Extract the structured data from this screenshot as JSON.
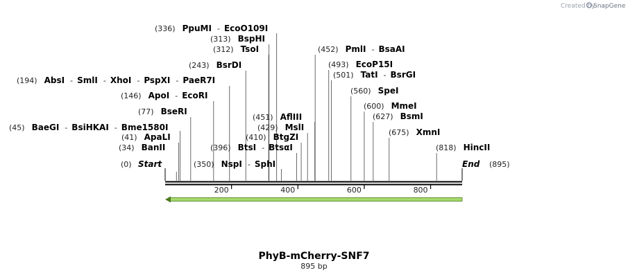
{
  "credit": {
    "prefix": "Created by",
    "brand": "SnapGene"
  },
  "map": {
    "name": "PhyB-mCherry-SNF7",
    "length_label": "895 bp",
    "length": 895,
    "start_label": "Start",
    "end_label": "End",
    "start_pos": "(0)",
    "end_pos": "(895)",
    "ticks": [
      {
        "value": 200,
        "label": "200"
      },
      {
        "value": 400,
        "label": "400"
      },
      {
        "value": 600,
        "label": "600"
      },
      {
        "value": 800,
        "label": "800"
      }
    ],
    "feature": {
      "start": 0,
      "end": 895,
      "direction": "reverse",
      "color": "#a6d96a"
    }
  },
  "sites": [
    {
      "pos": "(34)",
      "names": [
        "BanII"
      ],
      "cuts": [
        34
      ]
    },
    {
      "pos": "(41)",
      "names": [
        "ApaLI"
      ],
      "cuts": [
        41
      ]
    },
    {
      "pos": "(45)",
      "names": [
        "BaeGI",
        "BsiHKAI",
        "Bme1580I"
      ],
      "cuts": [
        45
      ]
    },
    {
      "pos": "(77)",
      "names": [
        "BseRI"
      ],
      "cuts": [
        77
      ]
    },
    {
      "pos": "(146)",
      "names": [
        "ApoI",
        "EcoRI"
      ],
      "cuts": [
        146
      ]
    },
    {
      "pos": "(194)",
      "names": [
        "AbsI",
        "SmlI",
        "XhoI",
        "PspXI",
        "PaeR7I"
      ],
      "cuts": [
        194
      ]
    },
    {
      "pos": "(243)",
      "names": [
        "BsrDI"
      ],
      "cuts": [
        243
      ]
    },
    {
      "pos": "(312)",
      "names": [
        "TsoI"
      ],
      "cuts": [
        312
      ]
    },
    {
      "pos": "(313)",
      "names": [
        "BspHI"
      ],
      "cuts": [
        313
      ]
    },
    {
      "pos": "(336)",
      "names": [
        "PpuMI",
        "EcoO109I"
      ],
      "cuts": [
        336
      ]
    },
    {
      "pos": "(350)",
      "names": [
        "NspI",
        "SphI"
      ],
      "cuts": [
        350
      ]
    },
    {
      "pos": "(396)",
      "names": [
        "BtsI",
        "BtsαI"
      ],
      "cuts": [
        396
      ]
    },
    {
      "pos": "(410)",
      "names": [
        "BtgZI"
      ],
      "cuts": [
        410
      ]
    },
    {
      "pos": "(429)",
      "names": [
        "MslI"
      ],
      "cuts": [
        429
      ]
    },
    {
      "pos": "(451)",
      "names": [
        "AflIII"
      ],
      "cuts": [
        451
      ]
    },
    {
      "pos": "(452)",
      "names": [
        "PmlI",
        "BsaAI"
      ],
      "cuts": [
        452
      ]
    },
    {
      "pos": "(493)",
      "names": [
        "EcoP15I"
      ],
      "cuts": [
        493
      ]
    },
    {
      "pos": "(501)",
      "names": [
        "TatI",
        "BsrGI"
      ],
      "cuts": [
        501
      ]
    },
    {
      "pos": "(560)",
      "names": [
        "SpeI"
      ],
      "cuts": [
        560
      ]
    },
    {
      "pos": "(600)",
      "names": [
        "MmeI"
      ],
      "cuts": [
        600
      ]
    },
    {
      "pos": "(627)",
      "names": [
        "BsmI"
      ],
      "cuts": [
        627
      ]
    },
    {
      "pos": "(675)",
      "names": [
        "XmnI"
      ],
      "cuts": [
        675
      ]
    },
    {
      "pos": "(818)",
      "names": [
        "HincII"
      ],
      "cuts": [
        818
      ]
    }
  ]
}
